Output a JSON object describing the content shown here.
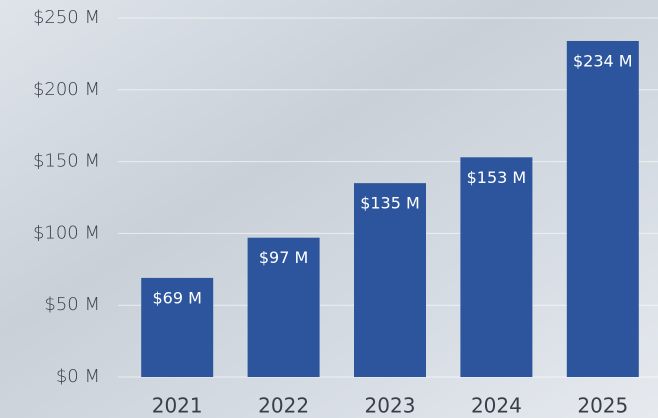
{
  "chart_data": {
    "type": "bar",
    "categories": [
      "2021",
      "2022",
      "2023",
      "2024",
      "2025"
    ],
    "values": [
      69,
      97,
      135,
      153,
      234
    ],
    "value_labels": [
      "$69 M",
      "$97 M",
      "$135 M",
      "$153 M",
      "$234 M"
    ],
    "color": "#2d559e",
    "ylim": [
      0,
      250
    ],
    "yticks": [
      {
        "value": 0,
        "label": "$0 M"
      },
      {
        "value": 50,
        "label": "$50 M"
      },
      {
        "value": 100,
        "label": "$100 M"
      },
      {
        "value": 150,
        "label": "$150 M"
      },
      {
        "value": 200,
        "label": "$200 M"
      },
      {
        "value": 250,
        "label": "$250 M"
      }
    ],
    "grid": true
  }
}
